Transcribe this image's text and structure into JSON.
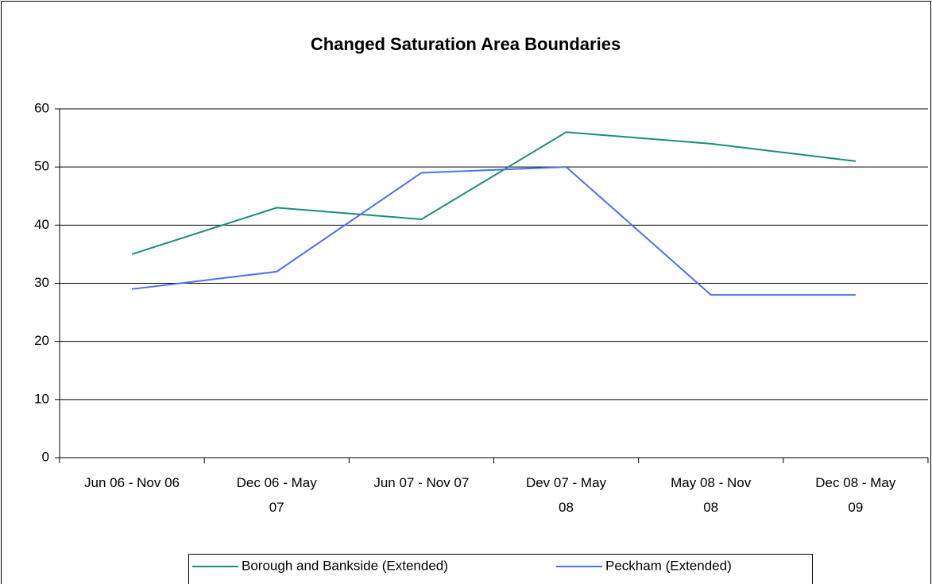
{
  "chart_data": {
    "type": "line",
    "title": "Changed Saturation Area Boundaries",
    "categories": [
      "Jun 06 - Nov 06",
      "Dec 06 - May\n07",
      "Jun 07 - Nov 07",
      "Dev 07 - May\n08",
      "May 08 - Nov\n08",
      "Dec 08 - May\n09"
    ],
    "series": [
      {
        "name": "Borough and Bankside (Extended)",
        "color": "#1b8c7e",
        "values": [
          35,
          43,
          41,
          56,
          54,
          51
        ]
      },
      {
        "name": "Peckham (Extended)",
        "color": "#4d6ef5",
        "values": [
          29,
          32,
          49,
          50,
          28,
          28
        ]
      }
    ],
    "ylim": [
      0,
      60
    ],
    "yticks": [
      0,
      10,
      20,
      30,
      40,
      50,
      60
    ],
    "grid": true,
    "legend": "bottom"
  }
}
